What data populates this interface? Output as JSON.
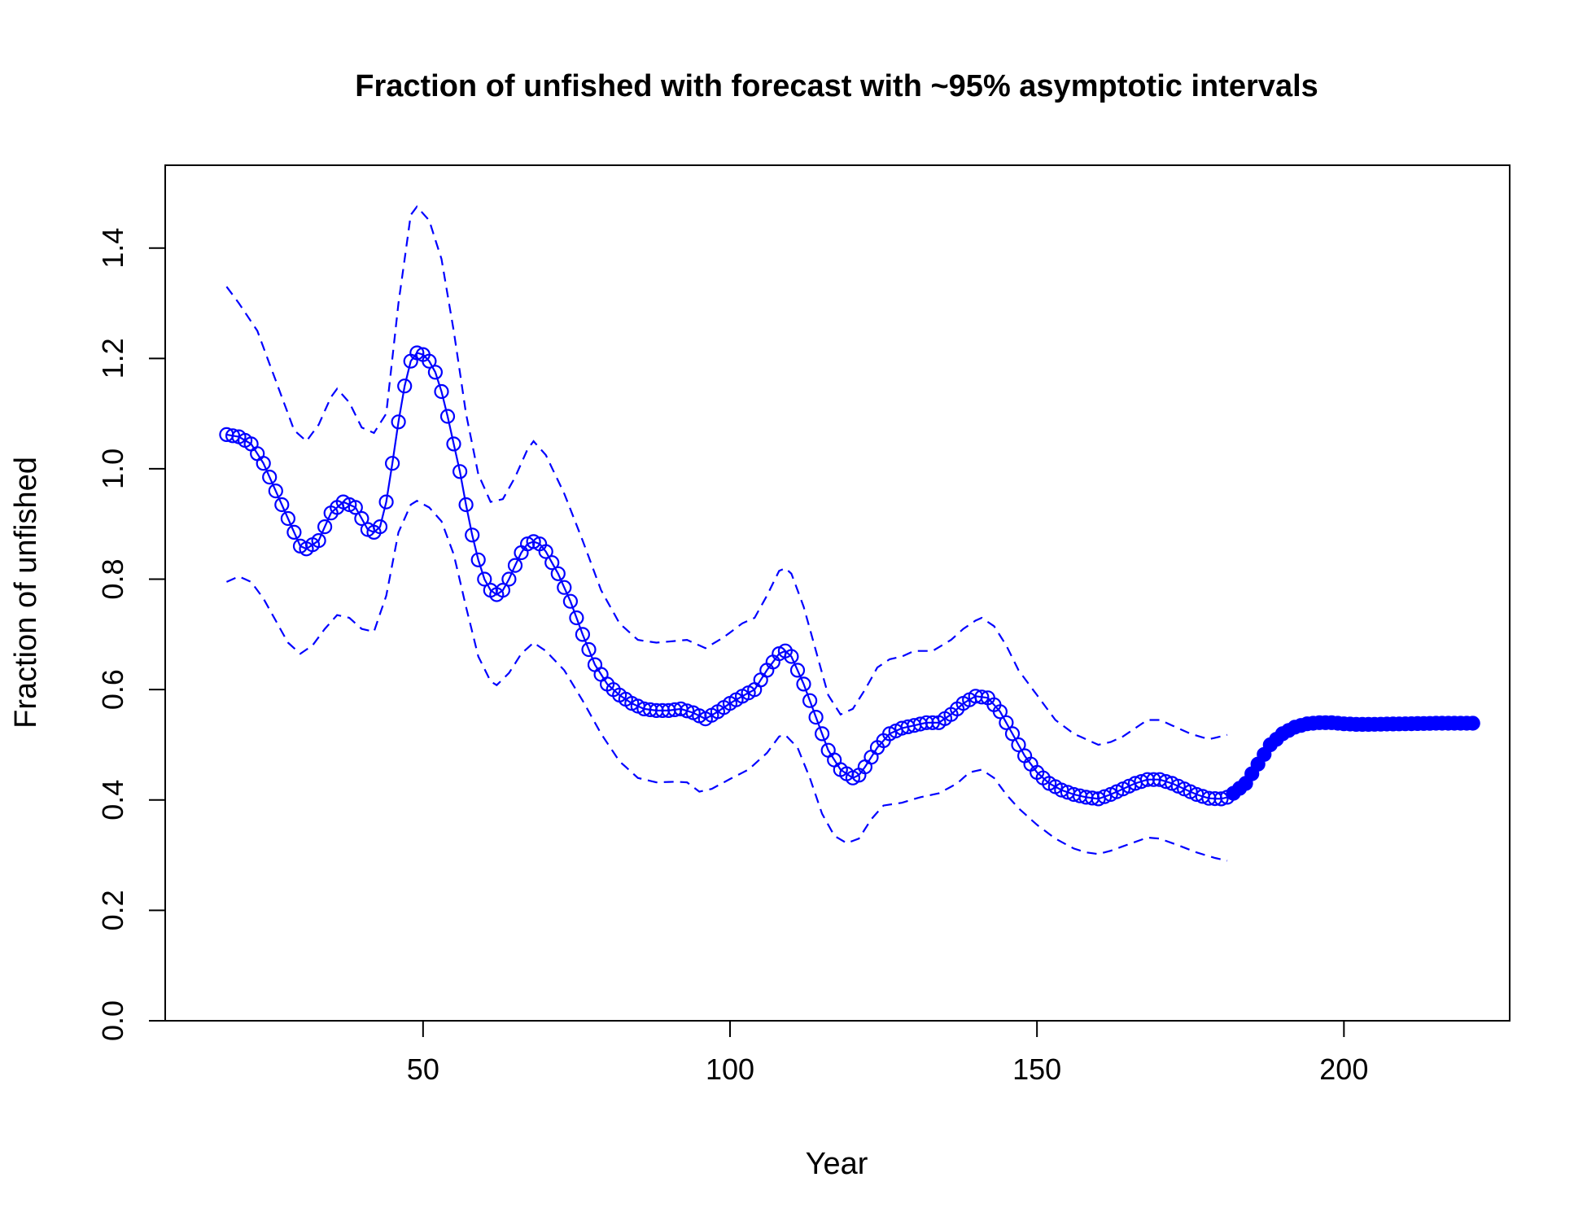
{
  "chart_data": {
    "type": "line",
    "title": "Fraction of unfished with forecast with ~95% asymptotic intervals",
    "xlabel": "Year",
    "ylabel": "Fraction of unfished",
    "xlim": [
      8,
      227
    ],
    "ylim": [
      0,
      1.55
    ],
    "x_ticks": [
      50,
      100,
      150,
      200
    ],
    "y_ticks": [
      0.0,
      0.2,
      0.4,
      0.6,
      0.8,
      1.0,
      1.2,
      1.4
    ],
    "x_tick_labels": [
      "50",
      "100",
      "150",
      "200"
    ],
    "y_tick_labels": [
      "0.0",
      "0.2",
      "0.4",
      "0.6",
      "0.8",
      "1.0",
      "1.2",
      "1.4"
    ],
    "grid": false,
    "colors": {
      "series": "#0000ff",
      "frame": "#000000"
    },
    "series": [
      {
        "role": "estimate",
        "marker": "open-circle",
        "line_style": "solid",
        "x_range": [
          18,
          181
        ],
        "knots": [
          [
            18,
            1.062
          ],
          [
            20,
            1.058
          ],
          [
            22,
            1.045
          ],
          [
            24,
            1.01
          ],
          [
            26,
            0.96
          ],
          [
            28,
            0.91
          ],
          [
            30,
            0.86
          ],
          [
            31,
            0.855
          ],
          [
            33,
            0.87
          ],
          [
            35,
            0.92
          ],
          [
            37,
            0.94
          ],
          [
            39,
            0.93
          ],
          [
            41,
            0.89
          ],
          [
            42,
            0.885
          ],
          [
            43,
            0.895
          ],
          [
            44,
            0.94
          ],
          [
            45,
            1.01
          ],
          [
            46,
            1.085
          ],
          [
            47,
            1.15
          ],
          [
            48,
            1.195
          ],
          [
            49,
            1.21
          ],
          [
            50,
            1.207
          ],
          [
            51,
            1.195
          ],
          [
            52,
            1.175
          ],
          [
            53,
            1.14
          ],
          [
            54,
            1.095
          ],
          [
            55,
            1.045
          ],
          [
            56,
            0.995
          ],
          [
            57,
            0.935
          ],
          [
            58,
            0.88
          ],
          [
            59,
            0.835
          ],
          [
            60,
            0.8
          ],
          [
            61,
            0.78
          ],
          [
            62,
            0.772
          ],
          [
            63,
            0.78
          ],
          [
            64,
            0.8
          ],
          [
            65,
            0.825
          ],
          [
            66,
            0.848
          ],
          [
            67,
            0.864
          ],
          [
            68,
            0.868
          ],
          [
            69,
            0.864
          ],
          [
            70,
            0.85
          ],
          [
            72,
            0.81
          ],
          [
            74,
            0.76
          ],
          [
            76,
            0.7
          ],
          [
            78,
            0.645
          ],
          [
            80,
            0.61
          ],
          [
            82,
            0.59
          ],
          [
            84,
            0.575
          ],
          [
            86,
            0.565
          ],
          [
            88,
            0.562
          ],
          [
            90,
            0.562
          ],
          [
            92,
            0.565
          ],
          [
            94,
            0.558
          ],
          [
            96,
            0.547
          ],
          [
            98,
            0.56
          ],
          [
            100,
            0.575
          ],
          [
            102,
            0.588
          ],
          [
            104,
            0.6
          ],
          [
            106,
            0.635
          ],
          [
            108,
            0.665
          ],
          [
            109,
            0.67
          ],
          [
            110,
            0.66
          ],
          [
            112,
            0.61
          ],
          [
            114,
            0.55
          ],
          [
            116,
            0.49
          ],
          [
            118,
            0.455
          ],
          [
            120,
            0.44
          ],
          [
            121,
            0.445
          ],
          [
            122,
            0.46
          ],
          [
            124,
            0.495
          ],
          [
            126,
            0.52
          ],
          [
            128,
            0.53
          ],
          [
            130,
            0.535
          ],
          [
            132,
            0.54
          ],
          [
            134,
            0.54
          ],
          [
            136,
            0.555
          ],
          [
            138,
            0.575
          ],
          [
            140,
            0.588
          ],
          [
            142,
            0.585
          ],
          [
            144,
            0.56
          ],
          [
            146,
            0.52
          ],
          [
            148,
            0.48
          ],
          [
            150,
            0.45
          ],
          [
            152,
            0.43
          ],
          [
            154,
            0.418
          ],
          [
            156,
            0.41
          ],
          [
            158,
            0.405
          ],
          [
            160,
            0.402
          ],
          [
            162,
            0.41
          ],
          [
            164,
            0.42
          ],
          [
            166,
            0.43
          ],
          [
            168,
            0.437
          ],
          [
            170,
            0.437
          ],
          [
            172,
            0.43
          ],
          [
            174,
            0.42
          ],
          [
            176,
            0.41
          ],
          [
            178,
            0.403
          ],
          [
            180,
            0.402
          ],
          [
            181,
            0.405
          ]
        ]
      },
      {
        "role": "forecast",
        "marker": "filled-circle",
        "line_style": "solid",
        "x_range": [
          182,
          221
        ],
        "knots": [
          [
            181,
            0.405
          ],
          [
            182,
            0.412
          ],
          [
            184,
            0.43
          ],
          [
            186,
            0.465
          ],
          [
            188,
            0.5
          ],
          [
            190,
            0.52
          ],
          [
            192,
            0.532
          ],
          [
            194,
            0.538
          ],
          [
            196,
            0.54
          ],
          [
            198,
            0.54
          ],
          [
            200,
            0.538
          ],
          [
            202,
            0.537
          ],
          [
            204,
            0.537
          ],
          [
            210,
            0.538
          ],
          [
            215,
            0.539
          ],
          [
            221,
            0.539
          ]
        ]
      },
      {
        "role": "upper-95-interval",
        "marker": "none",
        "line_style": "dashed",
        "x_range": [
          18,
          181
        ],
        "knots": [
          [
            18,
            1.33
          ],
          [
            20,
            1.3
          ],
          [
            23,
            1.25
          ],
          [
            26,
            1.16
          ],
          [
            29,
            1.07
          ],
          [
            31,
            1.05
          ],
          [
            33,
            1.08
          ],
          [
            35,
            1.13
          ],
          [
            36,
            1.145
          ],
          [
            38,
            1.12
          ],
          [
            40,
            1.075
          ],
          [
            42,
            1.065
          ],
          [
            44,
            1.1
          ],
          [
            46,
            1.3
          ],
          [
            48,
            1.46
          ],
          [
            49,
            1.475
          ],
          [
            51,
            1.45
          ],
          [
            53,
            1.38
          ],
          [
            55,
            1.25
          ],
          [
            57,
            1.1
          ],
          [
            59,
            0.99
          ],
          [
            61,
            0.94
          ],
          [
            63,
            0.945
          ],
          [
            65,
            0.985
          ],
          [
            67,
            1.035
          ],
          [
            68,
            1.05
          ],
          [
            70,
            1.025
          ],
          [
            73,
            0.955
          ],
          [
            76,
            0.87
          ],
          [
            79,
            0.78
          ],
          [
            82,
            0.72
          ],
          [
            85,
            0.69
          ],
          [
            88,
            0.685
          ],
          [
            91,
            0.688
          ],
          [
            93,
            0.69
          ],
          [
            96,
            0.675
          ],
          [
            99,
            0.695
          ],
          [
            102,
            0.72
          ],
          [
            104,
            0.73
          ],
          [
            106,
            0.77
          ],
          [
            108,
            0.815
          ],
          [
            109,
            0.82
          ],
          [
            110,
            0.81
          ],
          [
            112,
            0.75
          ],
          [
            114,
            0.67
          ],
          [
            116,
            0.59
          ],
          [
            118,
            0.555
          ],
          [
            120,
            0.565
          ],
          [
            122,
            0.6
          ],
          [
            124,
            0.64
          ],
          [
            126,
            0.655
          ],
          [
            128,
            0.66
          ],
          [
            130,
            0.67
          ],
          [
            133,
            0.67
          ],
          [
            136,
            0.69
          ],
          [
            138,
            0.71
          ],
          [
            140,
            0.725
          ],
          [
            141,
            0.73
          ],
          [
            143,
            0.715
          ],
          [
            145,
            0.68
          ],
          [
            147,
            0.635
          ],
          [
            150,
            0.59
          ],
          [
            153,
            0.545
          ],
          [
            156,
            0.52
          ],
          [
            158,
            0.51
          ],
          [
            160,
            0.5
          ],
          [
            162,
            0.505
          ],
          [
            164,
            0.515
          ],
          [
            166,
            0.53
          ],
          [
            168,
            0.545
          ],
          [
            170,
            0.545
          ],
          [
            172,
            0.535
          ],
          [
            175,
            0.52
          ],
          [
            178,
            0.51
          ],
          [
            181,
            0.518
          ]
        ]
      },
      {
        "role": "lower-95-interval",
        "marker": "none",
        "line_style": "dashed",
        "x_range": [
          18,
          181
        ],
        "knots": [
          [
            18,
            0.795
          ],
          [
            20,
            0.805
          ],
          [
            22,
            0.795
          ],
          [
            24,
            0.765
          ],
          [
            26,
            0.725
          ],
          [
            28,
            0.685
          ],
          [
            30,
            0.665
          ],
          [
            32,
            0.68
          ],
          [
            34,
            0.71
          ],
          [
            36,
            0.735
          ],
          [
            38,
            0.73
          ],
          [
            40,
            0.71
          ],
          [
            42,
            0.705
          ],
          [
            44,
            0.77
          ],
          [
            46,
            0.885
          ],
          [
            48,
            0.935
          ],
          [
            49,
            0.942
          ],
          [
            51,
            0.93
          ],
          [
            53,
            0.905
          ],
          [
            55,
            0.845
          ],
          [
            57,
            0.75
          ],
          [
            59,
            0.66
          ],
          [
            61,
            0.615
          ],
          [
            62,
            0.608
          ],
          [
            64,
            0.63
          ],
          [
            66,
            0.665
          ],
          [
            68,
            0.685
          ],
          [
            70,
            0.67
          ],
          [
            73,
            0.635
          ],
          [
            76,
            0.58
          ],
          [
            79,
            0.52
          ],
          [
            82,
            0.47
          ],
          [
            85,
            0.44
          ],
          [
            88,
            0.432
          ],
          [
            91,
            0.433
          ],
          [
            93,
            0.432
          ],
          [
            95,
            0.415
          ],
          [
            97,
            0.42
          ],
          [
            100,
            0.438
          ],
          [
            103,
            0.455
          ],
          [
            106,
            0.485
          ],
          [
            108,
            0.515
          ],
          [
            109,
            0.518
          ],
          [
            111,
            0.495
          ],
          [
            113,
            0.44
          ],
          [
            115,
            0.375
          ],
          [
            117,
            0.335
          ],
          [
            119,
            0.322
          ],
          [
            121,
            0.33
          ],
          [
            123,
            0.365
          ],
          [
            125,
            0.39
          ],
          [
            128,
            0.395
          ],
          [
            131,
            0.405
          ],
          [
            134,
            0.412
          ],
          [
            137,
            0.43
          ],
          [
            139,
            0.45
          ],
          [
            141,
            0.455
          ],
          [
            143,
            0.44
          ],
          [
            145,
            0.41
          ],
          [
            147,
            0.385
          ],
          [
            150,
            0.355
          ],
          [
            153,
            0.33
          ],
          [
            156,
            0.312
          ],
          [
            158,
            0.305
          ],
          [
            160,
            0.302
          ],
          [
            162,
            0.308
          ],
          [
            165,
            0.32
          ],
          [
            168,
            0.332
          ],
          [
            170,
            0.33
          ],
          [
            173,
            0.318
          ],
          [
            176,
            0.305
          ],
          [
            179,
            0.295
          ],
          [
            181,
            0.29
          ]
        ]
      }
    ]
  }
}
